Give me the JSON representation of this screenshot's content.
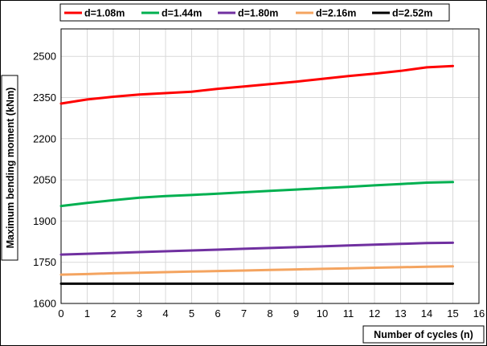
{
  "chart_data": {
    "type": "line",
    "xlabel": "Number of cycles (n)",
    "ylabel": "Maximum bending moment (kNm)",
    "xlim": [
      0,
      16
    ],
    "ylim": [
      1600,
      2600
    ],
    "xticks": [
      0,
      1,
      2,
      3,
      4,
      5,
      6,
      7,
      8,
      9,
      10,
      11,
      12,
      13,
      14,
      15,
      16
    ],
    "yticks": [
      1600,
      1750,
      1900,
      2050,
      2200,
      2350,
      2500
    ],
    "grid": true,
    "legend_position": "top",
    "x": [
      0,
      1,
      2,
      3,
      4,
      5,
      6,
      7,
      8,
      9,
      10,
      11,
      12,
      13,
      14,
      15
    ],
    "series": [
      {
        "name": "d=1.08m",
        "color": "#ff0000",
        "values": [
          2328,
          2343,
          2353,
          2361,
          2366,
          2371,
          2382,
          2390,
          2399,
          2408,
          2418,
          2428,
          2437,
          2447,
          2460,
          2465
        ]
      },
      {
        "name": "d=1.44m",
        "color": "#00b050",
        "values": [
          1955,
          1966,
          1976,
          1985,
          1991,
          1995,
          2000,
          2005,
          2010,
          2015,
          2020,
          2025,
          2030,
          2035,
          2040,
          2042
        ]
      },
      {
        "name": "d=1.80m",
        "color": "#7030a0",
        "values": [
          1778,
          1781,
          1784,
          1787,
          1790,
          1793,
          1796,
          1799,
          1802,
          1805,
          1808,
          1811,
          1814,
          1817,
          1820,
          1821
        ]
      },
      {
        "name": "d=2.16m",
        "color": "#f4a460",
        "values": [
          1705,
          1707,
          1710,
          1712,
          1714,
          1716,
          1718,
          1720,
          1722,
          1724,
          1726,
          1728,
          1730,
          1732,
          1734,
          1735
        ]
      },
      {
        "name": "d=2.52m",
        "color": "#000000",
        "values": [
          1672,
          1672,
          1672,
          1672,
          1672,
          1672,
          1672,
          1672,
          1672,
          1672,
          1672,
          1672,
          1672,
          1672,
          1672,
          1672
        ]
      }
    ]
  }
}
